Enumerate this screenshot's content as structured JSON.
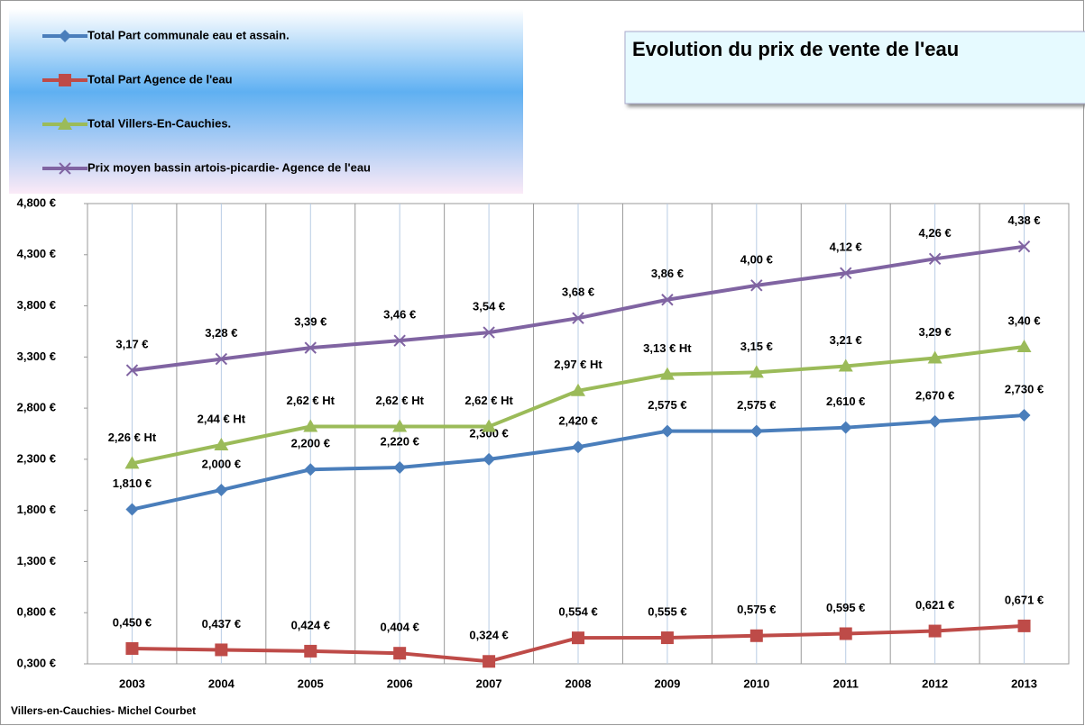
{
  "chart_data": {
    "type": "line",
    "title": "Evolution du prix de vente de l'eau",
    "footer": "Villers-en-Cauchies- Michel Courbet",
    "categories": [
      "2003",
      "2004",
      "2005",
      "2006",
      "2007",
      "2008",
      "2009",
      "2010",
      "2011",
      "2012",
      "2013"
    ],
    "ylim": [
      0.3,
      4.8
    ],
    "yticks": [
      {
        "value": 0.3,
        "label": "0,300 €"
      },
      {
        "value": 0.8,
        "label": "0,800 €"
      },
      {
        "value": 1.3,
        "label": "1,300 €"
      },
      {
        "value": 1.8,
        "label": "1,800 €"
      },
      {
        "value": 2.3,
        "label": "2,300 €"
      },
      {
        "value": 2.8,
        "label": "2,800 €"
      },
      {
        "value": 3.3,
        "label": "3,300 €"
      },
      {
        "value": 3.8,
        "label": "3,800 €"
      },
      {
        "value": 4.3,
        "label": "4,300 €"
      },
      {
        "value": 4.8,
        "label": "4,800 €"
      }
    ],
    "legend": "top-left",
    "series": [
      {
        "name": "Total Part communale eau et assain.",
        "color": "#4a7ebb",
        "marker": "diamond",
        "values": [
          1.81,
          2.0,
          2.2,
          2.22,
          2.3,
          2.42,
          2.575,
          2.575,
          2.61,
          2.67,
          2.73
        ],
        "value_labels": [
          "1,810 €",
          "2,000 €",
          "2,200 €",
          "2,220 €",
          "2,300 €",
          "2,420 €",
          "2,575 €",
          "2,575 €",
          "2,610 €",
          "2,670 €",
          "2,730 €"
        ]
      },
      {
        "name": "Total Part Agence de l'eau",
        "color": "#be4b48",
        "marker": "square",
        "values": [
          0.45,
          0.437,
          0.424,
          0.404,
          0.324,
          0.554,
          0.555,
          0.575,
          0.595,
          0.621,
          0.671
        ],
        "value_labels": [
          "0,450 €",
          "0,437 €",
          "0,424 €",
          "0,404 €",
          "0,324 €",
          "0,554 €",
          "0,555 €",
          "0,575 €",
          "0,595 €",
          "0,621 €",
          "0,671 €"
        ]
      },
      {
        "name": "Total Villers-En-Cauchies.",
        "color": "#9bbb59",
        "marker": "triangle",
        "values": [
          2.26,
          2.44,
          2.62,
          2.62,
          2.62,
          2.97,
          3.13,
          3.15,
          3.21,
          3.29,
          3.4
        ],
        "value_labels": [
          "2,26 € Ht",
          "2,44 € Ht",
          "2,62 € Ht",
          "2,62 € Ht",
          "2,62 € Ht",
          "2,97 € Ht",
          "3,13 € Ht",
          "3,15 €",
          "3,21 €",
          "3,29 €",
          "3,40 €"
        ]
      },
      {
        "name": "Prix moyen bassin artois-picardie- Agence de l'eau",
        "color": "#8064a2",
        "marker": "x",
        "values": [
          3.17,
          3.28,
          3.39,
          3.46,
          3.54,
          3.68,
          3.86,
          4.0,
          4.12,
          4.26,
          4.38
        ],
        "value_labels": [
          "3,17 €",
          "3,28 €",
          "3,39 €",
          "3,46 €",
          "3,54 €",
          "3,68 €",
          "3,86 €",
          "4,00 €",
          "4,12 €",
          "4,26 €",
          "4,38 €"
        ]
      }
    ]
  }
}
